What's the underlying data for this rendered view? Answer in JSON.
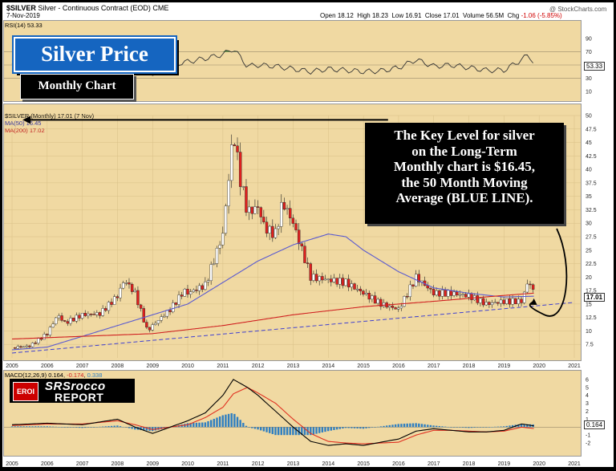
{
  "header": {
    "symbol": "$SILVER",
    "description": "Silver - Continuous Contract (EOD)",
    "exchange": "CME",
    "date": "7-Nov-2019",
    "open_label": "Open",
    "open": "18.12",
    "high_label": "High",
    "high": "18.23",
    "low_label": "Low",
    "low": "16.91",
    "close_label": "Close",
    "close": "17.01",
    "volume_label": "Volume",
    "volume": "56.5M",
    "chg_label": "Chg",
    "chg": "-1.06 (-5.85%)",
    "watermark": "@ StockCharts.com"
  },
  "title_box": {
    "title": "Silver Price",
    "subtitle": "Monthly Chart"
  },
  "callout": {
    "lines": [
      "The Key Level for silver",
      "on the Long-Term",
      "Monthly chart is $16.45,",
      "the 50 Month Moving",
      "Average (BLUE LINE)."
    ]
  },
  "logo": {
    "badge": "EROI",
    "line1": "SRSrocco",
    "line2": "REPORT"
  },
  "colors": {
    "panel_bg": "#f0d9a2",
    "up": "#ffffff",
    "down": "#e0201e",
    "ma50": "#5a5ad0",
    "ma200": "#d02020",
    "trend": "#4040d0",
    "macd": "#000000",
    "signal": "#e03020",
    "hist": "#2f7fc1",
    "rsi": "#333333",
    "rsi_fill": "#4a8a3a"
  },
  "chart_data": [
    {
      "type": "line",
      "title": "RSI(14) 53.33",
      "last_value": "53.33",
      "ylim": [
        0,
        100
      ],
      "yticks": [
        10,
        30,
        50,
        70,
        90
      ],
      "overbought": 70,
      "oversold": 30,
      "x": [
        2005,
        2005.5,
        2006,
        2006.4,
        2007,
        2007.5,
        2008,
        2008.5,
        2008.9,
        2009.5,
        2010,
        2010.5,
        2011,
        2011.3,
        2011.7,
        2012,
        2012.5,
        2013,
        2013.5,
        2014,
        2014.5,
        2015,
        2015.5,
        2016,
        2016.5,
        2017,
        2017.5,
        2018,
        2018.5,
        2019,
        2019.5,
        2019.7,
        2019.85
      ],
      "values": [
        55,
        58,
        62,
        66,
        54,
        57,
        60,
        55,
        34,
        50,
        55,
        60,
        66,
        75,
        48,
        50,
        48,
        44,
        40,
        44,
        42,
        40,
        41,
        46,
        58,
        48,
        50,
        46,
        42,
        42,
        58,
        66,
        53
      ]
    },
    {
      "type": "candlestick",
      "title": "$SILVER (Monthly) 17.01 (7 Nov)",
      "legend": [
        {
          "name": "MA(50) 16.45",
          "color": "#5a5ad0"
        },
        {
          "name": "MA(200) 17.02",
          "color": "#d02020"
        }
      ],
      "last_value": "17.01",
      "ylim": [
        5,
        50
      ],
      "yticks": [
        7.5,
        10,
        12.5,
        15,
        17.5,
        20,
        22.5,
        25,
        27.5,
        30,
        32.5,
        35,
        37.5,
        40,
        42.5,
        45,
        47.5,
        50
      ],
      "xticks": [
        "2005",
        "2006",
        "2007",
        "2008",
        "2009",
        "2010",
        "2011",
        "2012",
        "2013",
        "2014",
        "2015",
        "2016",
        "2017",
        "2018",
        "2019",
        "2020",
        "2021"
      ],
      "xlim": [
        2005,
        2021
      ],
      "close_path": {
        "x": [
          2005,
          2005.5,
          2006,
          2006.3,
          2006.5,
          2007,
          2007.5,
          2008,
          2008.2,
          2008.5,
          2008.85,
          2009,
          2009.5,
          2009.9,
          2010,
          2010.5,
          2011,
          2011.3,
          2011.5,
          2011.7,
          2012,
          2012.2,
          2012.5,
          2012.7,
          2013,
          2013.3,
          2013.5,
          2014,
          2014.5,
          2015,
          2015.5,
          2016,
          2016.5,
          2017,
          2017.5,
          2018,
          2018.5,
          2019,
          2019.5,
          2019.7,
          2019.85
        ],
        "values": [
          6.9,
          7.2,
          9.5,
          13,
          11.5,
          13,
          13.2,
          16.5,
          19.5,
          17,
          10,
          11,
          14,
          17.5,
          17,
          18.5,
          28,
          47,
          38,
          32,
          33,
          29,
          28,
          34,
          30,
          24,
          20,
          19.5,
          19,
          17,
          15,
          14,
          20,
          17,
          17,
          16.5,
          15,
          15.5,
          15.5,
          19.5,
          17.01
        ]
      },
      "ma50": {
        "x": [
          2005,
          2006,
          2007,
          2008,
          2009,
          2010,
          2011,
          2012,
          2013,
          2013.5,
          2014,
          2014.5,
          2015,
          2016,
          2017,
          2018,
          2019,
          2019.85
        ],
        "values": [
          6.5,
          7,
          9,
          11,
          13,
          15,
          19,
          23,
          26,
          27,
          28,
          27.5,
          25,
          21,
          18,
          17,
          16.3,
          16.45
        ]
      },
      "ma200": {
        "x": [
          2005,
          2009,
          2011,
          2013,
          2015,
          2017,
          2019,
          2019.85
        ],
        "values": [
          8.5,
          9.5,
          11,
          13,
          14.5,
          15.5,
          16.6,
          17.02
        ]
      },
      "trendline": {
        "x": [
          2005,
          2021
        ],
        "values": [
          5.9,
          15.3
        ]
      },
      "key_level": {
        "x": [
          2005.3,
          2015.7
        ],
        "values": [
          49.2,
          49.2
        ]
      }
    },
    {
      "type": "line",
      "title": "MACD(12,26,9) 0.164, -0.174, 0.338",
      "title_parts": [
        "MACD(12,26,9)",
        "0.164",
        ", ",
        "-0.174",
        ", ",
        "0.338"
      ],
      "last_value": "0.164",
      "ylim": [
        -3,
        6.5
      ],
      "yticks": [
        -2,
        -1,
        0,
        1,
        2,
        3,
        4,
        5,
        6
      ],
      "xticks": [
        "2005",
        "2006",
        "2007",
        "2008",
        "2009",
        "2010",
        "2011",
        "2012",
        "2013",
        "2014",
        "2015",
        "2016",
        "2017",
        "2018",
        "2019",
        "2020",
        "2021"
      ],
      "x": [
        2005,
        2006,
        2007,
        2008,
        2008.5,
        2009,
        2010,
        2010.5,
        2011,
        2011.3,
        2011.7,
        2012,
        2012.5,
        2013,
        2013.5,
        2014,
        2014.5,
        2015,
        2016,
        2016.5,
        2017,
        2017.5,
        2018,
        2018.5,
        2019,
        2019.5,
        2019.85
      ],
      "macd": [
        0.3,
        0.5,
        0.3,
        1,
        0,
        -0.8,
        0.8,
        1.8,
        4,
        6,
        5,
        4,
        2,
        0,
        -1.8,
        -2.3,
        -2.1,
        -2.3,
        -1.5,
        -0.5,
        -0.2,
        -0.4,
        -0.6,
        -0.6,
        -0.4,
        0.4,
        0.164
      ],
      "signal": [
        0.2,
        0.4,
        0.4,
        0.8,
        0.3,
        -0.3,
        0.3,
        1.2,
        2.5,
        4.2,
        5,
        4.3,
        3,
        1,
        -0.8,
        -1.8,
        -2,
        -2.1,
        -1.9,
        -1,
        -0.4,
        -0.4,
        -0.5,
        -0.6,
        -0.5,
        0,
        -0.174
      ]
    }
  ]
}
